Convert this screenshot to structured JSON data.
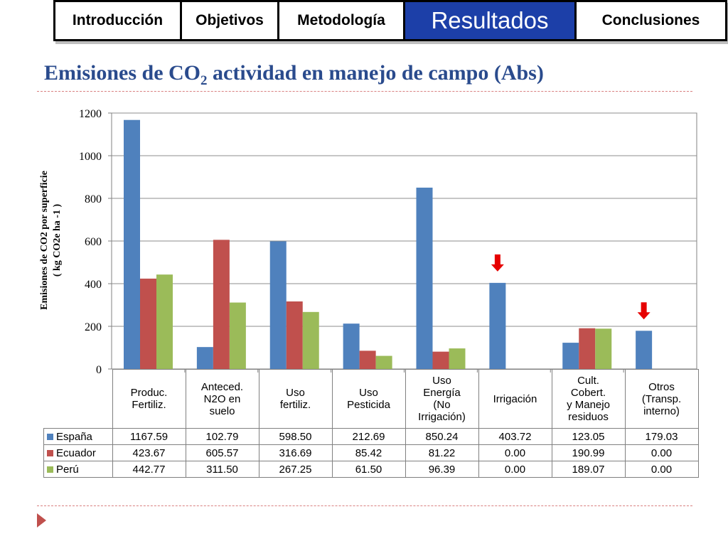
{
  "nav": {
    "tabs": [
      {
        "label": "Introducción",
        "active": false
      },
      {
        "label": "Objetivos",
        "active": false
      },
      {
        "label": "Metodología",
        "active": false
      },
      {
        "label": "Resultados",
        "active": true
      },
      {
        "label": "Conclusiones",
        "active": false
      }
    ]
  },
  "title": {
    "prefix": "Emisiones de CO",
    "subscript": "2",
    "suffix": " actividad en manejo de campo (Abs)"
  },
  "colors": {
    "accent": "#2a4b8d",
    "tab_active": "#1c3fa8",
    "espana": "#4f81bd",
    "ecuador": "#c0504d",
    "peru": "#9bbb59",
    "arrow": "#e60000"
  },
  "chart_data": {
    "type": "bar",
    "ylabel_line1": "Emisiones de CO2 por superficie",
    "ylabel_line2": "( kg CO2e ha -1 )",
    "ylim": [
      0,
      1200
    ],
    "yticks": [
      "0",
      "200",
      "400",
      "600",
      "800",
      "1000",
      "1200"
    ],
    "grid": true,
    "categories": [
      "Produc.\nFertiliz.",
      "Anteced.\nN2O en\nsuelo",
      "Uso\nfertiliz.",
      "Uso\nPesticida",
      "Uso\nEnergía\n(No\nIrrigación)",
      "Irrigación",
      "Cult.\nCobert.\ny Manejo\nresiduos",
      "Otros\n(Transp.\ninterno)"
    ],
    "series": [
      {
        "name": "España",
        "color": "#4f81bd",
        "values": [
          1167.59,
          102.79,
          598.5,
          212.69,
          850.24,
          403.72,
          123.05,
          179.03
        ],
        "display": [
          "1167.59",
          "102.79",
          "598.50",
          "212.69",
          "850.24",
          "403.72",
          "123.05",
          "179.03"
        ]
      },
      {
        "name": "Ecuador",
        "color": "#c0504d",
        "values": [
          423.67,
          605.57,
          316.69,
          85.42,
          81.22,
          0.0,
          190.99,
          0.0
        ],
        "display": [
          "423.67",
          "605.57",
          "316.69",
          "85.42",
          "81.22",
          "0.00",
          "190.99",
          "0.00"
        ]
      },
      {
        "name": "Perú",
        "color": "#9bbb59",
        "values": [
          442.77,
          311.5,
          267.25,
          61.5,
          96.39,
          0.0,
          189.07,
          0.0
        ],
        "display": [
          "442.77",
          "311.50",
          "267.25",
          "61.50",
          "96.39",
          "0.00",
          "189.07",
          "0.00"
        ]
      }
    ],
    "highlight_arrows": [
      {
        "category_index": 5,
        "icon": "red-down-arrow-icon"
      },
      {
        "category_index": 7,
        "icon": "red-down-arrow-icon"
      }
    ]
  }
}
